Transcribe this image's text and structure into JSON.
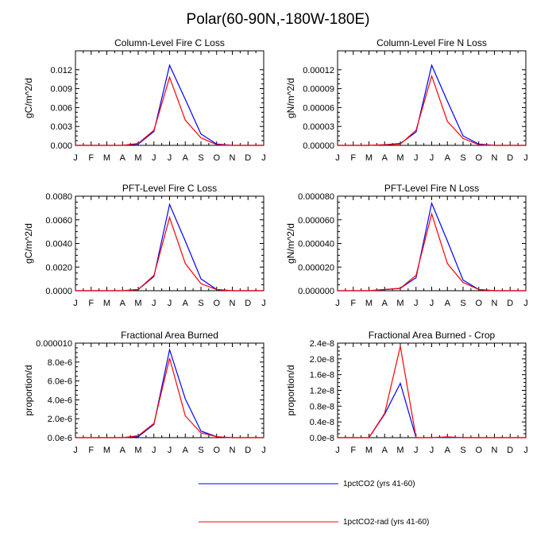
{
  "figure": {
    "title": "Polar(60-90N,-180W-180E)",
    "legend": [
      {
        "label": "1pctCO2 (yrs 41-60)",
        "color": "#0000ff"
      },
      {
        "label": "1pctCO2-rad (yrs 41-60)",
        "color": "#ff0000"
      }
    ]
  },
  "chart_data": [
    {
      "type": "line",
      "title": "Column-Level Fire C Loss",
      "ylabel": "gC/m^2/d",
      "xlabel": "",
      "categories": [
        "J",
        "F",
        "M",
        "A",
        "M",
        "J",
        "J",
        "A",
        "S",
        "O",
        "N",
        "D",
        "J"
      ],
      "ylim": [
        0,
        0.015
      ],
      "yticks": [
        "0.000",
        "0.003",
        "0.006",
        "0.009",
        "0.012"
      ],
      "ytick_values": [
        0,
        0.003,
        0.006,
        0.009,
        0.012
      ],
      "grid": false,
      "series": [
        {
          "name": "1pctCO2 (yrs 41-60)",
          "color": "#0000ff",
          "values": [
            0,
            0,
            0,
            0,
            0.0002,
            0.0022,
            0.0127,
            0.0073,
            0.0018,
            0.0002,
            0,
            0,
            0
          ]
        },
        {
          "name": "1pctCO2-rad (yrs 41-60)",
          "color": "#ff0000",
          "values": [
            0,
            0,
            0,
            0,
            0.0003,
            0.0024,
            0.0108,
            0.004,
            0.0012,
            0.0001,
            0,
            0,
            0
          ]
        }
      ]
    },
    {
      "type": "line",
      "title": "Column-Level Fire N Loss",
      "ylabel": "gN/m^2/d",
      "xlabel": "",
      "categories": [
        "J",
        "F",
        "M",
        "A",
        "M",
        "J",
        "J",
        "A",
        "S",
        "O",
        "N",
        "D",
        "J"
      ],
      "ylim": [
        0,
        0.00015
      ],
      "yticks": [
        "0.00000",
        "0.00003",
        "0.00006",
        "0.00009",
        "0.00012"
      ],
      "ytick_values": [
        0,
        3e-05,
        6e-05,
        9e-05,
        0.00012
      ],
      "grid": false,
      "series": [
        {
          "name": "1pctCO2 (yrs 41-60)",
          "color": "#0000ff",
          "values": [
            0,
            0,
            0,
            1e-06,
            3e-06,
            2.1e-05,
            0.000127,
            7e-05,
            1.5e-05,
            2e-06,
            0,
            0,
            0
          ]
        },
        {
          "name": "1pctCO2-rad (yrs 41-60)",
          "color": "#ff0000",
          "values": [
            0,
            0,
            0,
            1e-06,
            2e-06,
            2.4e-05,
            0.00011,
            3.8e-05,
            1.1e-05,
            1e-06,
            0,
            0,
            0
          ]
        }
      ]
    },
    {
      "type": "line",
      "title": "PFT-Level Fire C Loss",
      "ylabel": "gC/m^2/d",
      "xlabel": "",
      "categories": [
        "J",
        "F",
        "M",
        "A",
        "M",
        "J",
        "J",
        "A",
        "S",
        "O",
        "N",
        "D",
        "J"
      ],
      "ylim": [
        0,
        0.008
      ],
      "yticks": [
        "0.0000",
        "0.0020",
        "0.0040",
        "0.0060",
        "0.0080"
      ],
      "ytick_values": [
        0,
        0.002,
        0.004,
        0.006,
        0.008
      ],
      "grid": false,
      "series": [
        {
          "name": "1pctCO2 (yrs 41-60)",
          "color": "#0000ff",
          "values": [
            0,
            0,
            0,
            0,
            0.0001,
            0.0012,
            0.0073,
            0.0042,
            0.001,
            0.0001,
            0,
            0,
            0
          ]
        },
        {
          "name": "1pctCO2-rad (yrs 41-60)",
          "color": "#ff0000",
          "values": [
            0,
            0,
            0,
            0,
            0.0001,
            0.0013,
            0.0062,
            0.0023,
            0.0006,
            0.0001,
            0,
            0,
            0
          ]
        }
      ]
    },
    {
      "type": "line",
      "title": "PFT-Level Fire N Loss",
      "ylabel": "gN/m^2/d",
      "xlabel": "",
      "categories": [
        "J",
        "F",
        "M",
        "A",
        "M",
        "J",
        "J",
        "A",
        "S",
        "O",
        "N",
        "D",
        "J"
      ],
      "ylim": [
        0,
        8e-05
      ],
      "yticks": [
        "0.000000",
        "0.000020",
        "0.000040",
        "0.000060",
        "0.000080"
      ],
      "ytick_values": [
        0,
        2e-05,
        4e-05,
        6e-05,
        8e-05
      ],
      "grid": false,
      "series": [
        {
          "name": "1pctCO2 (yrs 41-60)",
          "color": "#0000ff",
          "values": [
            0,
            0,
            0,
            1e-06,
            2e-06,
            1.1e-05,
            7.4e-05,
            4.2e-05,
            9e-06,
            1e-06,
            0,
            0,
            0
          ]
        },
        {
          "name": "1pctCO2-rad (yrs 41-60)",
          "color": "#ff0000",
          "values": [
            0,
            0,
            0,
            1e-06,
            2e-06,
            1.3e-05,
            6.5e-05,
            2.3e-05,
            7e-06,
            1e-06,
            0,
            0,
            0
          ]
        }
      ]
    },
    {
      "type": "line",
      "title": "Fractional Area Burned",
      "ylabel": "proportion/d",
      "xlabel": "",
      "categories": [
        "J",
        "F",
        "M",
        "A",
        "M",
        "J",
        "J",
        "A",
        "S",
        "O",
        "N",
        "D",
        "J"
      ],
      "ylim": [
        0,
        1e-05
      ],
      "yticks": [
        "0.0e-6",
        "2.0e-6",
        "4.0e-6",
        "6.0e-6",
        "8.0e-6",
        "0.000010"
      ],
      "ytick_values": [
        0,
        2e-06,
        4e-06,
        6e-06,
        8e-06,
        1e-05
      ],
      "grid": false,
      "series": [
        {
          "name": "1pctCO2 (yrs 41-60)",
          "color": "#0000ff",
          "values": [
            0,
            0,
            0,
            0,
            1e-07,
            1.4e-06,
            9.3e-06,
            4.1e-06,
            7e-07,
            1e-07,
            0,
            0,
            0
          ]
        },
        {
          "name": "1pctCO2-rad (yrs 41-60)",
          "color": "#ff0000",
          "values": [
            0,
            0,
            0,
            0,
            2e-07,
            1.5e-06,
            8.4e-06,
            2.3e-06,
            5e-07,
            1e-07,
            0,
            0,
            0
          ]
        }
      ]
    },
    {
      "type": "line",
      "title": "Fractional Area Burned - Crop",
      "ylabel": "proportion/d",
      "xlabel": "",
      "categories": [
        "J",
        "F",
        "M",
        "A",
        "M",
        "J",
        "J",
        "A",
        "S",
        "O",
        "N",
        "D",
        "J"
      ],
      "ylim": [
        0,
        2.4e-08
      ],
      "yticks": [
        "0.0e-8",
        "0.4e-8",
        "0.8e-8",
        "1.2e-8",
        "1.6e-8",
        "2.0e-8",
        "2.4e-8"
      ],
      "ytick_values": [
        0,
        4e-09,
        8e-09,
        1.2e-08,
        1.6e-08,
        2e-08,
        2.4e-08
      ],
      "grid": false,
      "series": [
        {
          "name": "1pctCO2 (yrs 41-60)",
          "color": "#0000ff",
          "values": [
            0,
            0,
            0,
            6e-09,
            1.38e-08,
            0,
            0,
            1e-10,
            0,
            0,
            0,
            0,
            0
          ]
        },
        {
          "name": "1pctCO2-rad (yrs 41-60)",
          "color": "#ff0000",
          "values": [
            0,
            0,
            0,
            6.2e-09,
            2.32e-08,
            0,
            0,
            2e-10,
            0,
            0,
            0,
            0,
            0
          ]
        }
      ]
    }
  ]
}
